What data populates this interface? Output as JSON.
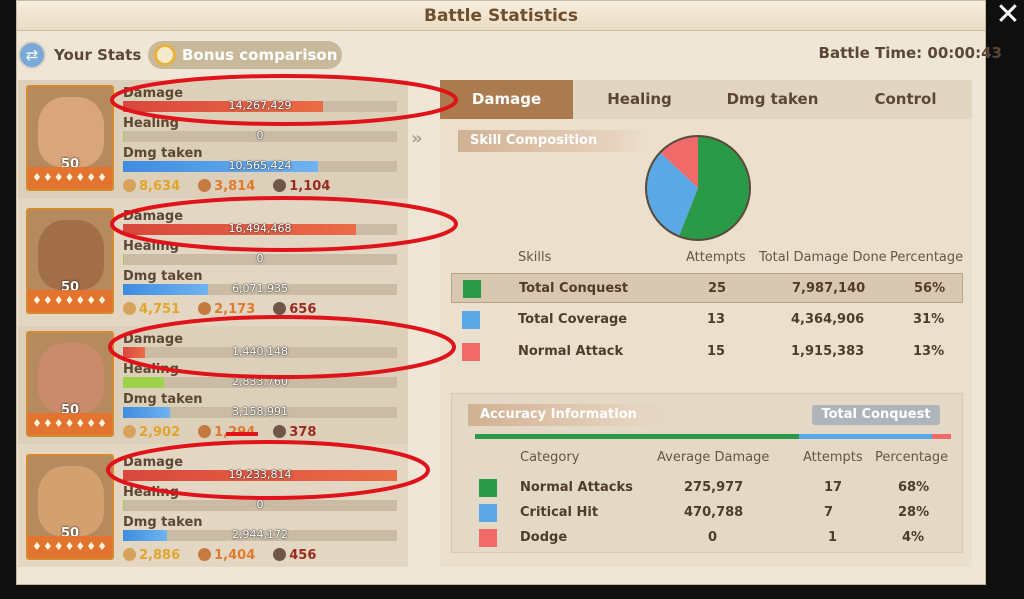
{
  "window": {
    "title": "Battle Statistics",
    "close_icon": "close-icon"
  },
  "header": {
    "your_stats_label": "Your Stats",
    "bonus_label": "Bonus comparison",
    "battle_time": "Battle Time: 00:00:43"
  },
  "heroes": [
    {
      "level": "50",
      "damage_label": "Damage",
      "damage": "14,267,429",
      "damage_fill": 0.73,
      "healing_label": "Healing",
      "healing": "0",
      "healing_fill": 0.005,
      "taken_label": "Dmg taken",
      "taken": "10,565,424",
      "taken_fill": 0.71,
      "count1": "8,634",
      "count2": "3,814",
      "count3": "1,104"
    },
    {
      "level": "50",
      "damage_label": "Damage",
      "damage": "16,494,468",
      "damage_fill": 0.85,
      "healing_label": "Healing",
      "healing": "0",
      "healing_fill": 0.005,
      "taken_label": "Dmg taken",
      "taken": "6,071,935",
      "taken_fill": 0.31,
      "count1": "4,751",
      "count2": "2,173",
      "count3": "656"
    },
    {
      "level": "50",
      "damage_label": "Damage",
      "damage": "1,440,148",
      "damage_fill": 0.08,
      "healing_label": "Healing",
      "healing": "2,833,760",
      "healing_fill": 0.15,
      "taken_label": "Dmg taken",
      "taken": "3,158,991",
      "taken_fill": 0.17,
      "count1": "2,902",
      "count2": "1,294",
      "count3": "378"
    },
    {
      "level": "50",
      "damage_label": "Damage",
      "damage": "19,233,814",
      "damage_fill": 1.0,
      "healing_label": "Healing",
      "healing": "0",
      "healing_fill": 0.005,
      "taken_label": "Dmg taken",
      "taken": "2,944,172",
      "taken_fill": 0.16,
      "count1": "2,886",
      "count2": "1,404",
      "count3": "456"
    }
  ],
  "tabs": [
    "Damage",
    "Healing",
    "Dmg taken",
    "Control"
  ],
  "skill": {
    "header": "Skill Composition",
    "columns": [
      "Skills",
      "Attempts",
      "Total Damage Done",
      "Percentage"
    ],
    "rows": [
      {
        "name": "Total Conquest",
        "attempts": "25",
        "damage": "7,987,140",
        "pct": "56%",
        "color": "#2b9a48"
      },
      {
        "name": "Total Coverage",
        "attempts": "13",
        "damage": "4,364,906",
        "pct": "31%",
        "color": "#5aa8e6"
      },
      {
        "name": "Normal Attack",
        "attempts": "15",
        "damage": "1,915,383",
        "pct": "13%",
        "color": "#f06a6a"
      }
    ],
    "pie": [
      56,
      31,
      13
    ]
  },
  "accuracy": {
    "header": "Accuracy Information",
    "selected": "Total Conquest",
    "columns": [
      "Category",
      "Average Damage",
      "Attempts",
      "Percentage"
    ],
    "rows": [
      {
        "name": "Normal Attacks",
        "avg": "275,977",
        "attempts": "17",
        "pct": "68%",
        "color": "#2b9a48"
      },
      {
        "name": "Critical Hit",
        "avg": "470,788",
        "attempts": "7",
        "pct": "28%",
        "color": "#5aa8e6"
      },
      {
        "name": "Dodge",
        "avg": "0",
        "attempts": "1",
        "pct": "4%",
        "color": "#f06a6a"
      }
    ],
    "bar": [
      68,
      28,
      4
    ]
  }
}
